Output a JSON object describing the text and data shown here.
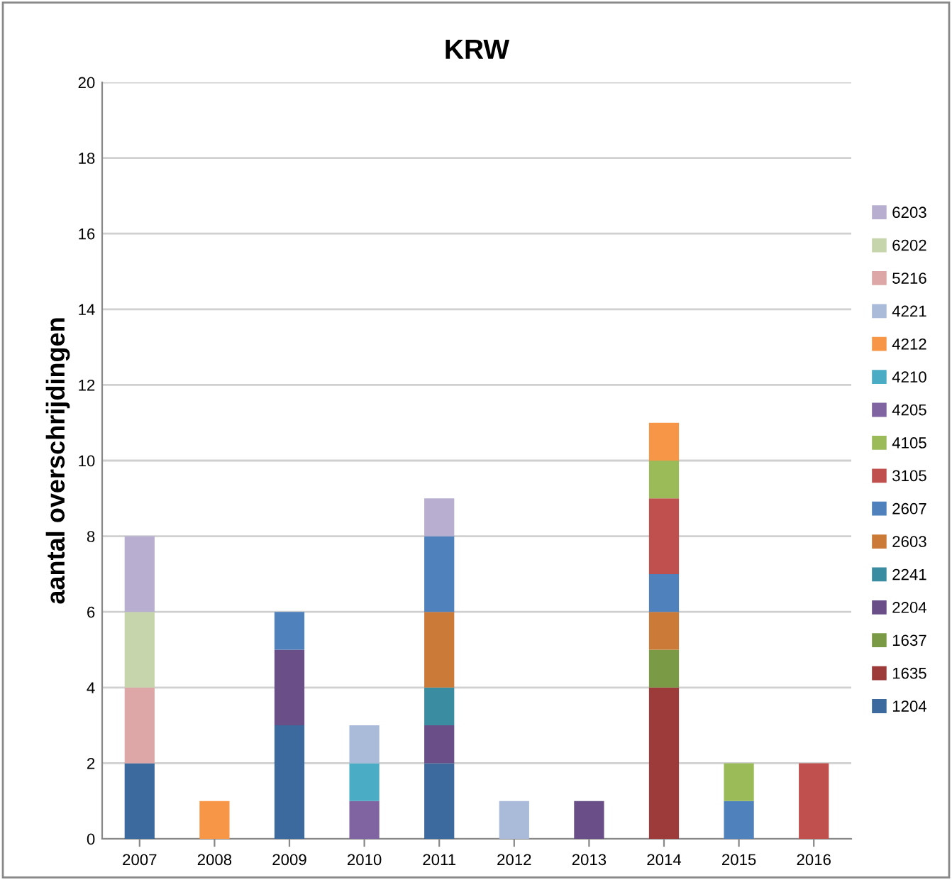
{
  "chart_data": {
    "type": "bar",
    "stacked": true,
    "title": "KRW",
    "ylabel": "aantal overschrijdingen",
    "categories": [
      "2007",
      "2008",
      "2009",
      "2010",
      "2011",
      "2012",
      "2013",
      "2014",
      "2015",
      "2016"
    ],
    "ylim": [
      0,
      20
    ],
    "yticks": [
      0,
      2,
      4,
      6,
      8,
      10,
      12,
      14,
      16,
      18,
      20
    ],
    "grid": "y",
    "legend": "right",
    "series": [
      {
        "name": "1204",
        "color": "#3d6a9e",
        "values": [
          2,
          null,
          3,
          null,
          2,
          null,
          null,
          null,
          null,
          null
        ]
      },
      {
        "name": "1635",
        "color": "#9c3b3a",
        "values": [
          null,
          null,
          null,
          null,
          null,
          null,
          null,
          4,
          null,
          null
        ]
      },
      {
        "name": "1637",
        "color": "#7a9a45",
        "values": [
          null,
          null,
          null,
          null,
          null,
          null,
          null,
          1,
          null,
          null
        ]
      },
      {
        "name": "2204",
        "color": "#6a4e88",
        "values": [
          null,
          null,
          2,
          null,
          1,
          null,
          1,
          null,
          null,
          null
        ]
      },
      {
        "name": "2241",
        "color": "#3a8ca0",
        "values": [
          null,
          null,
          null,
          null,
          1,
          null,
          null,
          null,
          null,
          null
        ]
      },
      {
        "name": "2603",
        "color": "#cc7a38",
        "values": [
          null,
          null,
          null,
          null,
          2,
          null,
          null,
          1,
          null,
          null
        ]
      },
      {
        "name": "2607",
        "color": "#4f81bd",
        "values": [
          null,
          null,
          1,
          null,
          2,
          null,
          null,
          1,
          1,
          null
        ]
      },
      {
        "name": "3105",
        "color": "#c0504d",
        "values": [
          null,
          null,
          null,
          null,
          null,
          null,
          null,
          2,
          null,
          2
        ]
      },
      {
        "name": "4105",
        "color": "#9bbb59",
        "values": [
          null,
          null,
          null,
          null,
          null,
          null,
          null,
          1,
          1,
          null
        ]
      },
      {
        "name": "4205",
        "color": "#8064a2",
        "values": [
          null,
          null,
          null,
          1,
          null,
          null,
          null,
          null,
          null,
          null
        ]
      },
      {
        "name": "4210",
        "color": "#4bacc6",
        "values": [
          null,
          null,
          null,
          1,
          null,
          null,
          null,
          null,
          null,
          null
        ]
      },
      {
        "name": "4212",
        "color": "#f79646",
        "values": [
          null,
          1,
          null,
          null,
          null,
          null,
          null,
          1,
          null,
          null
        ]
      },
      {
        "name": "4221",
        "color": "#a9bbd9",
        "values": [
          null,
          null,
          null,
          1,
          null,
          1,
          null,
          null,
          null,
          null
        ]
      },
      {
        "name": "5216",
        "color": "#dca7a6",
        "values": [
          2,
          null,
          null,
          null,
          null,
          null,
          null,
          null,
          null,
          null
        ]
      },
      {
        "name": "6202",
        "color": "#c6d5ab",
        "values": [
          2,
          null,
          null,
          null,
          null,
          null,
          null,
          null,
          null,
          null
        ]
      },
      {
        "name": "6203",
        "color": "#b8aed0",
        "values": [
          2,
          null,
          null,
          null,
          1,
          null,
          null,
          null,
          null,
          null
        ]
      }
    ]
  }
}
